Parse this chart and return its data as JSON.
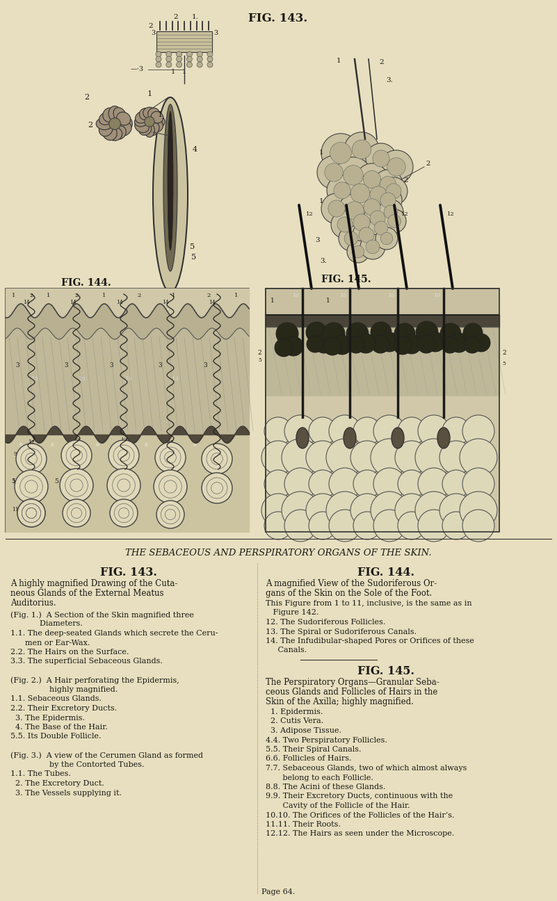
{
  "bg_color": "#e8dfc0",
  "text_color": "#1a1a14",
  "figsize": [
    8.01,
    12.96
  ],
  "dpi": 100,
  "top_fig_title": "FIG. 143.",
  "separator_title": "THE SEBACEOUS AND PERSPIRATORY ORGANS OF THE SKIN.",
  "fig144_label": "FIG. 144.",
  "fig145_label": "FIG. 145.",
  "col_left_fig": "FIG. 143.",
  "col_right_fig": "FIG. 144.",
  "col_right_fig2": "FIG. 145.",
  "page_num": "Page 64."
}
